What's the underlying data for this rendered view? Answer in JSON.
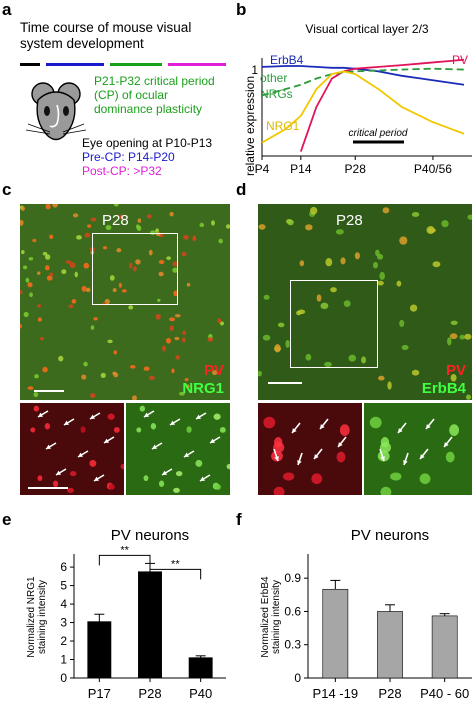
{
  "colors": {
    "green_text": "#1aa01a",
    "blue": "#1a1acc",
    "magenta": "#e01ed8",
    "red": "#e0145a",
    "nrg1": "#f0c800",
    "other_nrg": "#2b9c3a",
    "erbb4_line": "#1a2ab8",
    "bar_black": "#000000",
    "bar_gray": "#a6a6a6",
    "micro_green": "#2a6a12",
    "micro_red": "#4a0a0c"
  },
  "panel_a": {
    "label": "a",
    "title": "Time course of mouse visual system development",
    "critical_period": "P21-P32 critical period (CP) of ocular dominance plasticity",
    "eye_opening": "Eye opening at P10-P13",
    "pre_cp": "Pre-CP: P14-P20",
    "post_cp": "Post-CP: >P32",
    "mouse_icon": "mouse-head-icon"
  },
  "panel_b": {
    "label": "b",
    "title": "Visual cortical layer 2/3",
    "ylabel": "relative expression",
    "ytick": "1",
    "xticks": [
      "P4",
      "P14",
      "P28",
      "P40/56"
    ],
    "critical_period_label": "critical period",
    "series_labels": {
      "erbb4": "ErbB4",
      "pv": "PV",
      "other": "other NRGs",
      "nrg1": "NRG1"
    }
  },
  "panel_c": {
    "label": "c",
    "age": "P28",
    "stain1": "PV",
    "stain2": "NRG1"
  },
  "panel_d": {
    "label": "d",
    "age": "P28",
    "stain1": "PV",
    "stain2": "ErbB4"
  },
  "panel_e": {
    "label": "e"
  },
  "panel_f": {
    "label": "f"
  },
  "chart_data": [
    {
      "type": "line",
      "title": "Visual cortical layer 2/3",
      "xlabel": "",
      "ylabel": "relative expression",
      "x_ticks": [
        "P4",
        "P14",
        "P28",
        "P40/56"
      ],
      "x": [
        4,
        10,
        14,
        18,
        22,
        25,
        28,
        34,
        40,
        48,
        56
      ],
      "series": [
        {
          "name": "ErbB4",
          "values": [
            1.0,
            1.01,
            1.01,
            1.0,
            0.99,
            0.99,
            0.98,
            0.95,
            0.9,
            0.85,
            0.8
          ]
        },
        {
          "name": "PV",
          "values": [
            null,
            null,
            0.05,
            0.55,
            0.87,
            0.95,
            0.98,
            1.0,
            1.02,
            1.05,
            1.08
          ]
        },
        {
          "name": "other NRGs",
          "values": [
            0.68,
            0.75,
            0.8,
            0.87,
            0.92,
            0.94,
            0.95,
            0.96,
            0.97,
            0.98,
            0.97
          ]
        },
        {
          "name": "NRG1",
          "values": [
            0.15,
            0.3,
            0.45,
            0.75,
            0.92,
            0.95,
            0.92,
            0.75,
            0.55,
            0.38,
            0.25
          ]
        }
      ],
      "ylim": [
        0,
        1.1
      ],
      "annotations": [
        "critical period"
      ]
    },
    {
      "type": "bar",
      "title": "PV neurons",
      "ylabel": "Normalized NRG1 staining intensity",
      "categories": [
        "P17",
        "P28",
        "P40"
      ],
      "values": [
        3.05,
        5.75,
        1.1
      ],
      "errors": [
        0.4,
        0.45,
        0.1
      ],
      "yticks": [
        0,
        1,
        2,
        3,
        4,
        5,
        6
      ],
      "ylim": [
        0,
        6.6
      ],
      "significance": [
        {
          "from": "P17",
          "to": "P28",
          "label": "**"
        },
        {
          "from": "P28",
          "to": "P40",
          "label": "**"
        }
      ]
    },
    {
      "type": "bar",
      "title": "PV neurons",
      "ylabel": "Normalized ErbB4 staining intensity",
      "categories": [
        "P14 -19",
        "P28",
        "P40 - 60"
      ],
      "values": [
        0.8,
        0.6,
        0.56
      ],
      "errors": [
        0.08,
        0.06,
        0.02
      ],
      "yticks": [
        0,
        0.3,
        0.6,
        0.9
      ],
      "ylim": [
        0,
        1.1
      ]
    }
  ]
}
